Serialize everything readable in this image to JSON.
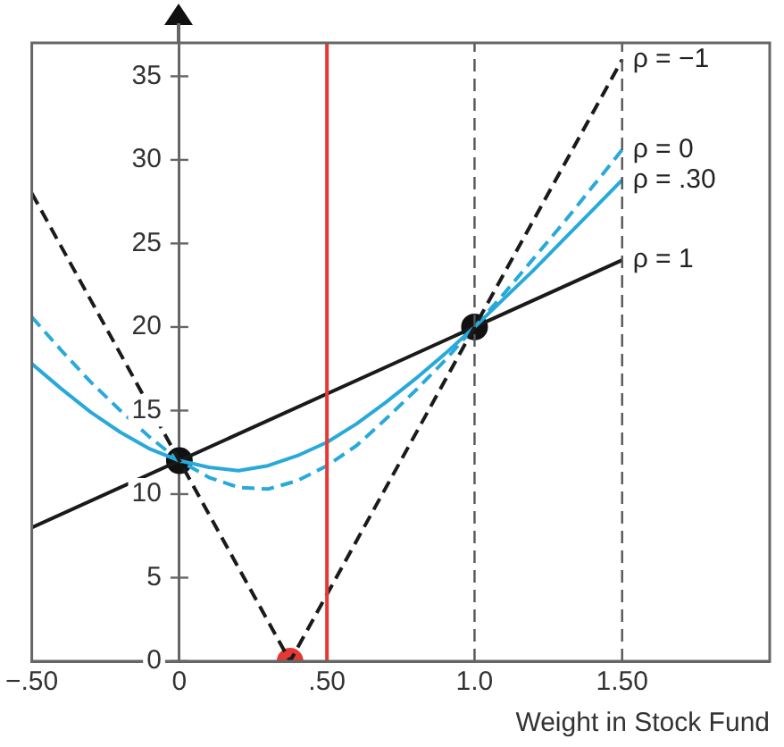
{
  "chart_data": {
    "type": "line",
    "xlabel": "Weight in Stock Fund",
    "x": [
      -0.5,
      -0.4,
      -0.3,
      -0.2,
      -0.1,
      0,
      0.1,
      0.2,
      0.3,
      0.4,
      0.5,
      0.6,
      0.7,
      0.8,
      0.9,
      1.0,
      1.1,
      1.2,
      1.3,
      1.4,
      1.5
    ],
    "series": [
      {
        "name": "ρ = −1",
        "type": "line",
        "color": "#1a1a1a",
        "line_style": "dashed",
        "x": [
          -0.5,
          0.375,
          1.5
        ],
        "values": [
          28,
          0,
          36
        ]
      },
      {
        "name": "ρ = 0",
        "type": "line",
        "color": "#29a9d9",
        "line_style": "dashed",
        "values": [
          20.6,
          18.6,
          16.7,
          15.0,
          13.4,
          12,
          11.0,
          10.4,
          10.3,
          10.8,
          11.7,
          12.9,
          14.5,
          16.2,
          18.0,
          20,
          22.0,
          24.1,
          26.2,
          28.4,
          30.6
        ]
      },
      {
        "name": "ρ = .30",
        "type": "line",
        "color": "#29a9d9",
        "line_style": "solid",
        "values": [
          17.8,
          16.3,
          14.9,
          13.7,
          12.7,
          12,
          11.6,
          11.4,
          11.7,
          12.3,
          13.1,
          14.2,
          15.5,
          16.9,
          18.4,
          20,
          21.7,
          23.4,
          25.2,
          27.0,
          28.8
        ]
      },
      {
        "name": "ρ = 1",
        "type": "line",
        "color": "#1a1a1a",
        "line_style": "solid",
        "x": [
          -0.5,
          1.5
        ],
        "values": [
          8,
          24
        ]
      },
      {
        "type": "scatter",
        "color": "#111111",
        "marker": "circle",
        "x": [
          0,
          1
        ],
        "values": [
          12,
          20
        ]
      },
      {
        "type": "scatter",
        "color": "#e53935",
        "marker": "circle",
        "x": [
          0.375
        ],
        "values": [
          0
        ]
      }
    ],
    "ref_lines": [
      {
        "axis": "x",
        "value": 0.5,
        "color": "#e53935",
        "line_style": "solid"
      },
      {
        "axis": "x",
        "value": 1.0,
        "color": "#555555",
        "line_style": "dashed"
      },
      {
        "axis": "x",
        "value": 1.5,
        "color": "#555555",
        "line_style": "dashed"
      }
    ],
    "xlim": [
      -0.5,
      2.0
    ],
    "xticks": [
      {
        "value": -0.5,
        "label": "−.50"
      },
      0,
      {
        "value": 0.5,
        "label": ".50"
      },
      {
        "value": 1.0,
        "label": "1.0"
      },
      {
        "value": 1.5,
        "label": "1.50"
      }
    ],
    "ylim": [
      0,
      37
    ],
    "yticks": [
      0,
      5,
      10,
      15,
      20,
      25,
      30,
      35
    ],
    "grid": false,
    "legend": false,
    "marker": "none"
  }
}
